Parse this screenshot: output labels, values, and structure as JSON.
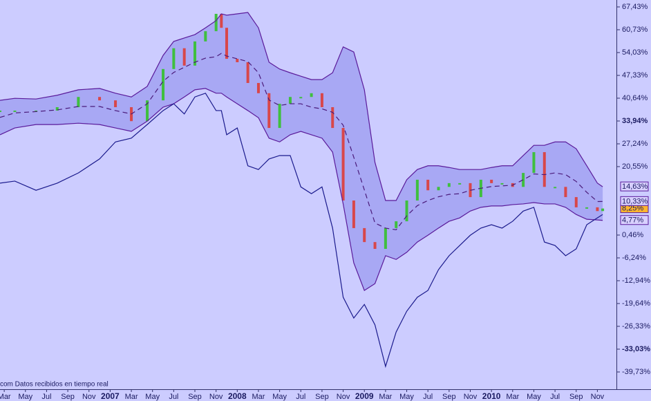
{
  "chart_data": {
    "type": "line",
    "footer": "com  Datos recibidos en tiempo real",
    "xlim": [
      1.6,
      59.8
    ],
    "ylim": [
      -44.6,
      69.46
    ],
    "xticks": [
      {
        "value": 2,
        "label": "Mar"
      },
      {
        "value": 4,
        "label": "May"
      },
      {
        "value": 6,
        "label": "Jul"
      },
      {
        "value": 8,
        "label": "Sep"
      },
      {
        "value": 10,
        "label": "Nov"
      },
      {
        "value": 12,
        "label": "2007",
        "bold": true
      },
      {
        "value": 14,
        "label": "Mar"
      },
      {
        "value": 16,
        "label": "May"
      },
      {
        "value": 18,
        "label": "Jul"
      },
      {
        "value": 20,
        "label": "Sep"
      },
      {
        "value": 22,
        "label": "Nov"
      },
      {
        "value": 24,
        "label": "2008",
        "bold": true
      },
      {
        "value": 26,
        "label": "Mar"
      },
      {
        "value": 28,
        "label": "May"
      },
      {
        "value": 30,
        "label": "Jul"
      },
      {
        "value": 32,
        "label": "Sep"
      },
      {
        "value": 34,
        "label": "Nov"
      },
      {
        "value": 36,
        "label": "2009",
        "bold": true
      },
      {
        "value": 38,
        "label": "Mar"
      },
      {
        "value": 40,
        "label": "May"
      },
      {
        "value": 42,
        "label": "Jul"
      },
      {
        "value": 44,
        "label": "Sep"
      },
      {
        "value": 46,
        "label": "Nov"
      },
      {
        "value": 48,
        "label": "2010",
        "bold": true
      },
      {
        "value": 50,
        "label": "Mar"
      },
      {
        "value": 52,
        "label": "May"
      },
      {
        "value": 54,
        "label": "Jul"
      },
      {
        "value": 56,
        "label": "Sep"
      },
      {
        "value": 58,
        "label": "Nov"
      }
    ],
    "yticks": [
      {
        "value": 67.43,
        "label": "67,43%"
      },
      {
        "value": 60.73,
        "label": "60,73%"
      },
      {
        "value": 54.03,
        "label": "54,03%"
      },
      {
        "value": 47.33,
        "label": "47,33%"
      },
      {
        "value": 40.64,
        "label": "40,64%"
      },
      {
        "value": 33.94,
        "label": "33,94%",
        "bold": true
      },
      {
        "value": 27.24,
        "label": "27,24%"
      },
      {
        "value": 20.55,
        "label": "20,55%"
      },
      {
        "value": 0.46,
        "label": "0,46%"
      },
      {
        "value": -6.24,
        "label": "-6,24%"
      },
      {
        "value": -12.94,
        "label": "-12,94%"
      },
      {
        "value": -19.64,
        "label": "-19,64%"
      },
      {
        "value": -26.33,
        "label": "-26,33%"
      },
      {
        "value": -33.03,
        "label": "-33,03%",
        "bold": true
      },
      {
        "value": -39.73,
        "label": "-39,73%"
      }
    ],
    "x": [
      1.6,
      3,
      5,
      7,
      9,
      11,
      12.5,
      14,
      15.5,
      17,
      18,
      19,
      20,
      21,
      22,
      22.5,
      23,
      24,
      25,
      26,
      27,
      28,
      29,
      30,
      31,
      32,
      33,
      34,
      35,
      36,
      37,
      38,
      39,
      40,
      41,
      42,
      43,
      44,
      45,
      46,
      47,
      48,
      49,
      50,
      51,
      52,
      53,
      54,
      55,
      56,
      57,
      58,
      58.5
    ],
    "band": [
      1,
      3
    ],
    "band_color": "#9c9cf0",
    "series": [
      {
        "kind": "candles",
        "color": "#3fbf3f",
        "down_color": "#d8474a",
        "last_label": "8,25%",
        "label_fill": "#ffb52e",
        "label_color": "#5a1a9a",
        "values": [
          37.0,
          37.0,
          37.0,
          38.0,
          41.0,
          40.0,
          38.0,
          33.9,
          40.0,
          49.2,
          55.3,
          50.2,
          57.3,
          60.3,
          65.4,
          61.3,
          52.2,
          51.2,
          45.1,
          42.1,
          31.9,
          39.0,
          41.0,
          41.0,
          42.1,
          38.0,
          31.9,
          10.6,
          2.5,
          -1.6,
          -3.6,
          2.5,
          4.5,
          10.6,
          16.7,
          13.6,
          14.6,
          15.7,
          15.7,
          11.6,
          16.7,
          15.7,
          15.7,
          14.6,
          18.7,
          24.8,
          14.6,
          14.6,
          11.6,
          8.6,
          8.6,
          7.5,
          8.25
        ]
      },
      {
        "kind": "line",
        "color": "#5a1a9a",
        "last_label": "14,63%",
        "label_fill": "#d8d0ff",
        "label_color": "#5a1a9a",
        "values": [
          40.0,
          40.6,
          40.4,
          41.5,
          43.1,
          43.5,
          42.1,
          41.0,
          44.1,
          53.2,
          57.3,
          58.3,
          59.3,
          61.3,
          63.4,
          65.4,
          65.0,
          65.4,
          65.8,
          61.3,
          51.2,
          49.2,
          48.1,
          47.1,
          46.1,
          46.1,
          48.1,
          55.7,
          54.2,
          43.1,
          21.8,
          10.6,
          10.6,
          16.7,
          19.7,
          20.8,
          20.8,
          20.3,
          19.7,
          19.7,
          19.7,
          20.3,
          20.8,
          20.8,
          23.8,
          26.8,
          26.8,
          27.8,
          27.8,
          25.8,
          20.8,
          15.7,
          14.63
        ]
      },
      {
        "kind": "dashed",
        "color": "#4a1a7a",
        "last_label": "10,33%",
        "label_fill": "#d8d0ff",
        "label_color": "#5a1a9a",
        "values": [
          35.0,
          36.3,
          36.7,
          37.2,
          38.2,
          38.2,
          37.0,
          36.0,
          39.0,
          45.6,
          48.2,
          49.7,
          51.2,
          52.4,
          52.8,
          53.8,
          53.0,
          52.2,
          51.4,
          48.1,
          40.1,
          38.5,
          39.0,
          39.0,
          38.0,
          37.5,
          36.5,
          32.7,
          23.3,
          13.7,
          4.0,
          2.5,
          2.0,
          6.1,
          9.1,
          10.6,
          11.7,
          12.4,
          12.6,
          13.6,
          14.2,
          14.7,
          14.9,
          15.1,
          16.7,
          18.4,
          18.2,
          18.7,
          18.2,
          16.2,
          13.0,
          10.3,
          10.33
        ]
      },
      {
        "kind": "line",
        "color": "#5a1a9a",
        "last_label": "4,77%",
        "label_fill": "#d8d0ff",
        "label_color": "#5a1a9a",
        "values": [
          29.9,
          31.9,
          32.9,
          32.9,
          33.3,
          32.9,
          31.9,
          30.9,
          33.9,
          38.0,
          39.0,
          41.0,
          43.1,
          43.5,
          42.1,
          42.1,
          41.0,
          39.0,
          37.0,
          34.9,
          28.9,
          27.8,
          29.9,
          30.9,
          29.9,
          28.9,
          24.8,
          9.6,
          -7.7,
          -15.8,
          -13.8,
          -5.6,
          -6.7,
          -4.6,
          -1.6,
          0.4,
          2.5,
          4.5,
          5.5,
          7.5,
          8.6,
          9.0,
          9.0,
          9.4,
          9.6,
          10.0,
          9.6,
          9.6,
          8.6,
          6.5,
          5.1,
          4.9,
          4.77
        ]
      },
      {
        "kind": "line",
        "color": "#1a1a8c",
        "values": [
          15.7,
          16.3,
          13.6,
          15.7,
          18.7,
          22.8,
          27.8,
          28.9,
          32.9,
          37.0,
          39.0,
          36.0,
          41.0,
          42.1,
          37.0,
          37.0,
          29.9,
          31.9,
          20.8,
          19.7,
          22.8,
          23.8,
          23.8,
          14.6,
          12.6,
          14.6,
          2.5,
          -17.8,
          -23.9,
          -19.9,
          -25.9,
          -38.1,
          -28.0,
          -21.9,
          -17.8,
          -15.8,
          -9.7,
          -5.6,
          -2.6,
          0.4,
          2.5,
          3.5,
          2.5,
          4.5,
          7.5,
          8.6,
          -1.6,
          -2.6,
          -5.6,
          -3.6,
          3.5,
          5.5,
          6.5
        ]
      }
    ]
  }
}
